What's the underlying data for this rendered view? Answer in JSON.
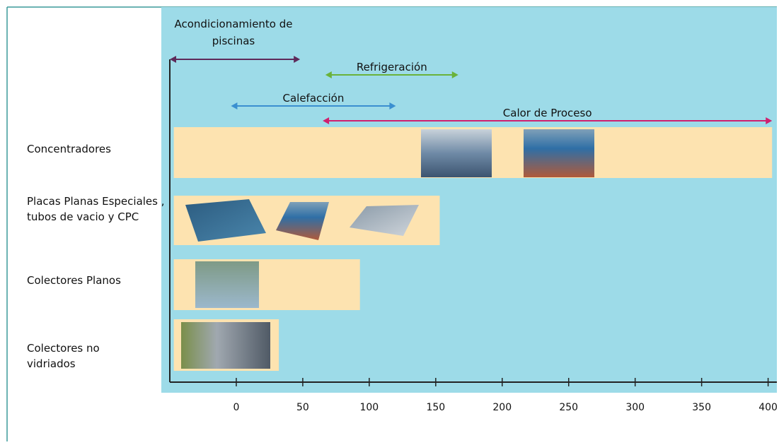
{
  "chart_data": {
    "type": "range",
    "categories": [
      "Concentradores",
      "Placas Planas Especiales , tubos de vacio y CPC",
      "Colectores Planos",
      "Colectores no vidriados"
    ],
    "starts": [
      -47,
      -47,
      -47,
      -47
    ],
    "ends": [
      403,
      153,
      93,
      32
    ],
    "color": "#fde3b0",
    "applications": [
      {
        "label": "Acondicionamiento de piscinas",
        "start": -50,
        "end": 48,
        "color": "#5e2a5a"
      },
      {
        "label": "Refrigeración",
        "start": 67,
        "end": 167,
        "color": "#6ab23a"
      },
      {
        "label": "Calefacción",
        "start": -4,
        "end": 120,
        "color": "#3a8fd0"
      },
      {
        "label": "Calor de Proceso",
        "start": 65,
        "end": 403,
        "color": "#d0206e"
      }
    ],
    "xlim": [
      -50,
      405
    ],
    "xticks": [
      0,
      50,
      100,
      150,
      200,
      250,
      300,
      350,
      400
    ]
  }
}
